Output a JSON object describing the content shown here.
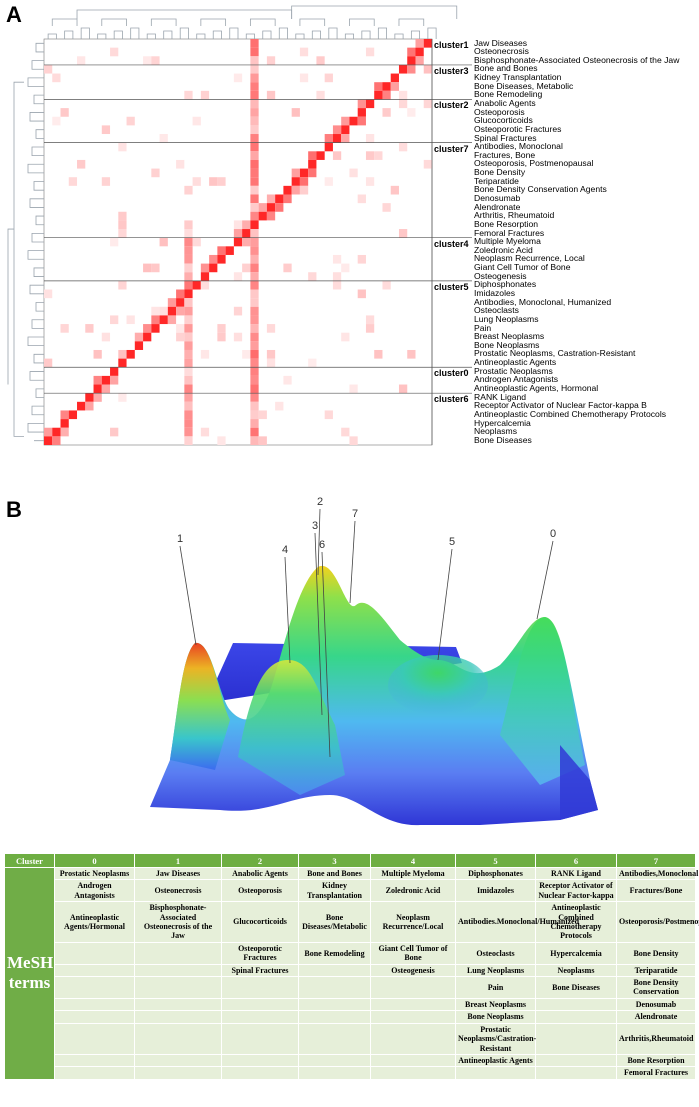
{
  "panel_a_label": "A",
  "panel_b_label": "B",
  "chart_data": [
    {
      "type": "heatmap",
      "title": "",
      "clusters": [
        {
          "label": "cluster1",
          "terms": [
            "Jaw Diseases",
            "Osteonecrosis",
            "Bisphosphonate-Associated Osteonecrosis of the Jaw"
          ]
        },
        {
          "label": "cluster3",
          "terms": [
            "Bone and Bones",
            "Kidney Transplantation",
            "Bone Diseases, Metabolic",
            "Bone Remodeling"
          ]
        },
        {
          "label": "cluster2",
          "terms": [
            "Anabolic Agents",
            "Osteoporosis",
            "Glucocorticoids",
            "Osteoporotic Fractures",
            "Spinal Fractures"
          ]
        },
        {
          "label": "cluster7",
          "terms": [
            "Antibodies, Monoclonal",
            "Fractures, Bone",
            "Osteoporosis, Postmenopausal",
            "Bone Density",
            "Teriparatide",
            "Bone Density Conservation Agents",
            "Denosumab",
            "Alendronate",
            "Arthritis, Rheumatoid",
            "Bone Resorption",
            "Femoral Fractures"
          ]
        },
        {
          "label": "cluster4",
          "terms": [
            "Multiple Myeloma",
            "Zoledronic Acid",
            "Neoplasm Recurrence, Local",
            "Giant Cell Tumor of Bone",
            "Osteogenesis"
          ]
        },
        {
          "label": "cluster5",
          "terms": [
            "Diphosphonates",
            "Imidazoles",
            "Antibodies, Monoclonal, Humanized",
            "Osteoclasts",
            "Lung Neoplasms",
            "Pain",
            "Breast Neoplasms",
            "Bone Neoplasms",
            "Prostatic Neoplasms, Castration-Resistant",
            "Antineoplastic Agents"
          ]
        },
        {
          "label": "cluster0",
          "terms": [
            "Prostatic Neoplasms",
            "Androgen Antagonists",
            "Antineoplastic Agents, Hormonal"
          ]
        },
        {
          "label": "cluster6",
          "terms": [
            "RANK Ligand",
            "Receptor Activator of Nuclear Factor-kappa B",
            "Antineoplastic Combined Chemotherapy Protocols",
            "Hypercalcemia",
            "Neoplasms",
            "Bone Diseases"
          ]
        }
      ],
      "color_scale": {
        "low": "#ffffff",
        "high": "#e31a1c"
      }
    },
    {
      "type": "surface",
      "title": "",
      "peaks": [
        {
          "label": "1"
        },
        {
          "label": "4"
        },
        {
          "label": "2"
        },
        {
          "label": "3"
        },
        {
          "label": "6"
        },
        {
          "label": "7"
        },
        {
          "label": "5"
        },
        {
          "label": "0"
        }
      ]
    }
  ],
  "table": {
    "cluster_header": "Cluster",
    "row_label": "MeSH terms",
    "columns": [
      "0",
      "1",
      "2",
      "3",
      "4",
      "5",
      "6",
      "7"
    ],
    "rows": [
      [
        "Prostatic Neoplasms",
        "Jaw Diseases",
        "Anabolic Agents",
        "Bone and Bones",
        "Multiple Myeloma",
        "Diphosphonates",
        "RANK Ligand",
        "Antibodies,Monoclonal"
      ],
      [
        "Androgen Antagonists",
        "Osteonecrosis",
        "Osteoporosis",
        "Kidney Transplantation",
        "Zoledronic Acid",
        "Imidazoles",
        "Receptor Activator of Nuclear Factor-kappa",
        "Fractures/Bone"
      ],
      [
        "Antineoplastic Agents/Hormonal",
        "Bisphosphonate-Associated Osteonecrosis of the Jaw",
        "Glucocorticoids",
        "Bone Diseases/Metabolic",
        "Neoplasm Recurrence/Local",
        "Antibodies.Monoclonal/Humanized",
        "Antineoplastic Combined Chemotherapy Protocols",
        "Osteoporosis/Postmenopausal"
      ],
      [
        "",
        "",
        "Osteoporotic Fractures",
        "Bone Remodeling",
        "Giant Cell Tumor of Bone",
        "Osteoclasts",
        "Hypercalcemia",
        "Bone Density"
      ],
      [
        "",
        "",
        "Spinal Fractures",
        "",
        "Osteogenesis",
        "Lung Neoplasms",
        "Neoplasms",
        "Teriparatide"
      ],
      [
        "",
        "",
        "",
        "",
        "",
        "Pain",
        "Bone Diseases",
        "Bone Density Conservation"
      ],
      [
        "",
        "",
        "",
        "",
        "",
        "Breast Neoplasms",
        "",
        "Denosumab"
      ],
      [
        "",
        "",
        "",
        "",
        "",
        "Bone Neoplasms",
        "",
        "Alendronate"
      ],
      [
        "",
        "",
        "",
        "",
        "",
        "Prostatic Neoplasms/Castration-Resistant",
        "",
        "Arthritis,Rheumatoid"
      ],
      [
        "",
        "",
        "",
        "",
        "",
        "Antineoplastic Agents",
        "",
        "Bone Resorption"
      ],
      [
        "",
        "",
        "",
        "",
        "",
        "",
        "",
        "Femoral Fractures"
      ]
    ]
  }
}
